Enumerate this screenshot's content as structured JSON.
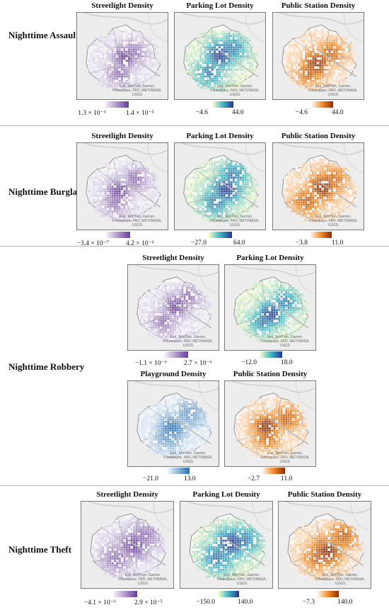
{
  "attribution": "Esri, TomTom, Garmin, Foursquare, FAO, METI/NASA, USGS",
  "colormaps": {
    "purple": [
      "#f5f3fa",
      "#6a3d9a"
    ],
    "teal": [
      "#ffffcc",
      "#41b6c4",
      "#253494"
    ],
    "orange": [
      "#fff5eb",
      "#f28c28",
      "#8c2d04"
    ],
    "blue": [
      "#f7fbff",
      "#2171b5"
    ]
  },
  "rows": [
    {
      "label": "Nighttime Assault",
      "panels": [
        {
          "title": "Streetlight Density",
          "cmap": "purple",
          "min": "1.3 × 10⁻⁶",
          "max": "1.4 × 10⁻⁵"
        },
        {
          "title": "Parking Lot Density",
          "cmap": "teal",
          "min": "−4.6",
          "max": "44.0"
        },
        {
          "title": "Public Station Density",
          "cmap": "orange",
          "min": "−4.6",
          "max": "44.0"
        }
      ]
    },
    {
      "label": "Nighttime Burglary",
      "panels": [
        {
          "title": "Streetlight Density",
          "cmap": "purple",
          "min": "−3.4 × 10⁻⁷",
          "max": "4.2 × 10⁻⁶"
        },
        {
          "title": "Parking Lot Density",
          "cmap": "teal",
          "min": "−27.0",
          "max": "64.0"
        },
        {
          "title": "Public Station Density",
          "cmap": "orange",
          "min": "−3.8",
          "max": "11.0"
        }
      ]
    },
    {
      "label": "Nighttime Robbery",
      "panels": [
        {
          "title": "Streetlight Density",
          "cmap": "purple",
          "min": "−1.1 × 10⁻⁶",
          "max": "2.7 × 10⁻⁶"
        },
        {
          "title": "Parking Lot Density",
          "cmap": "teal",
          "min": "−12.0",
          "max": "18.0"
        },
        {
          "title": "Playground Density",
          "cmap": "blue",
          "min": "−21.0",
          "max": "13.0"
        },
        {
          "title": "Public Station Density",
          "cmap": "orange",
          "min": "−2.7",
          "max": "11.0"
        }
      ]
    },
    {
      "label": "Nighttime Theft",
      "panels": [
        {
          "title": "Streetlight Density",
          "cmap": "purple",
          "min": "−4.1 × 10⁻⁶",
          "max": "2.9 × 10⁻⁵"
        },
        {
          "title": "Parking Lot Density",
          "cmap": "teal",
          "min": "−150.0",
          "max": "140.0"
        },
        {
          "title": "Public Station Density",
          "cmap": "orange",
          "min": "−7.3",
          "max": "140.0"
        }
      ]
    }
  ]
}
